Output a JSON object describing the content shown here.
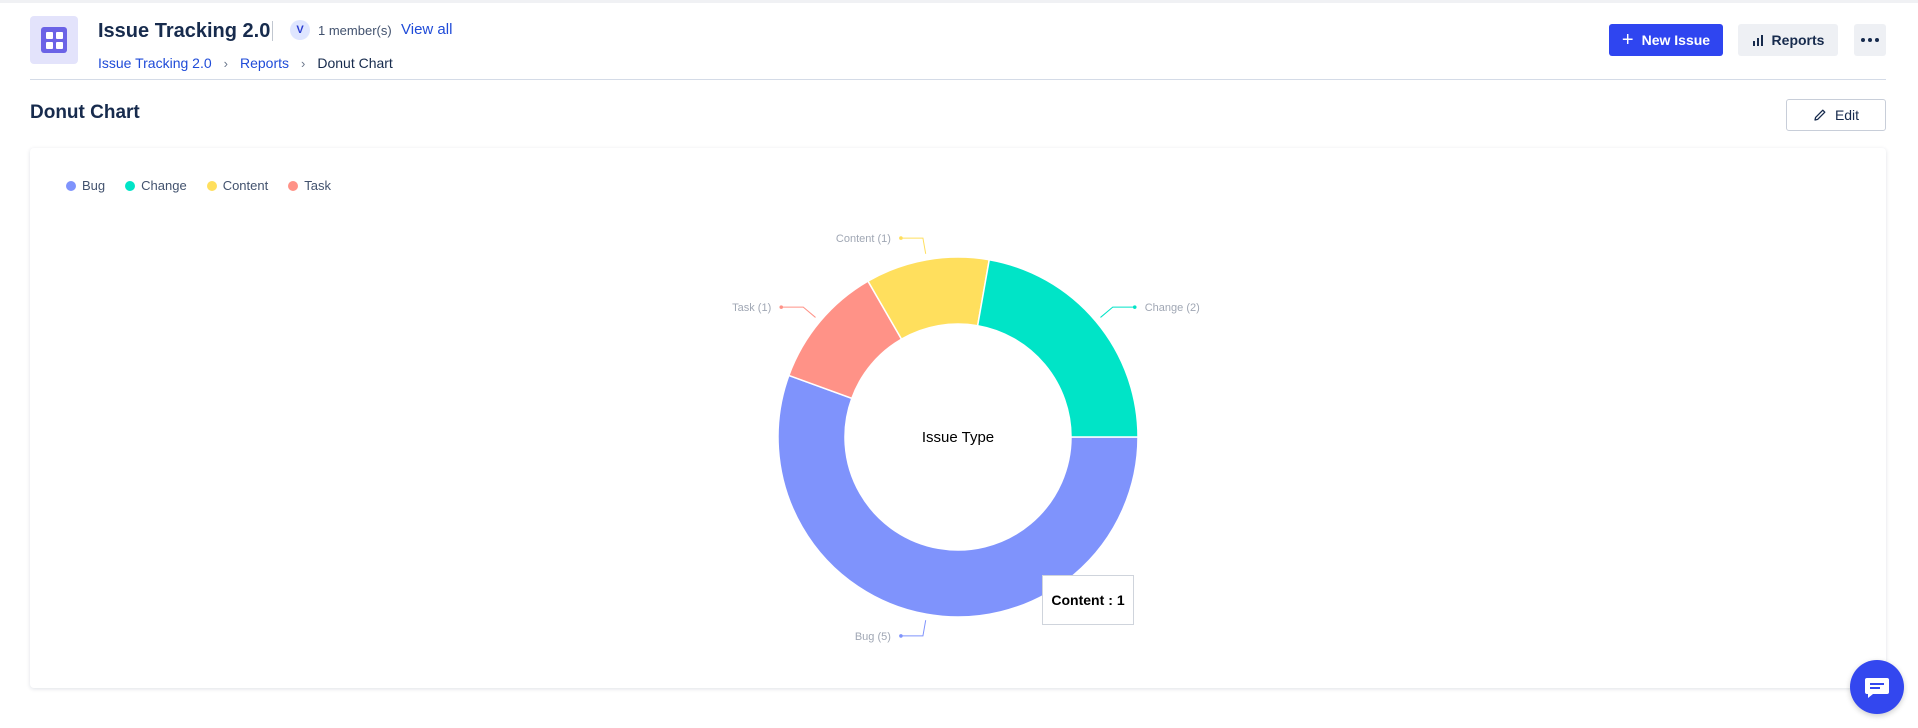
{
  "header": {
    "title": "Issue Tracking 2.0",
    "member_avatar": "V",
    "member_count": "1 member(s)",
    "view_all": "View all",
    "breadcrumb": [
      "Issue Tracking 2.0",
      "Reports",
      "Donut Chart"
    ],
    "new_issue": "New Issue",
    "reports": "Reports"
  },
  "section": {
    "title": "Donut Chart",
    "edit": "Edit"
  },
  "tooltip": {
    "label": "Content",
    "value": ": 1"
  },
  "colors": {
    "accent": "#2f45f0",
    "Bug": "#7f93fc",
    "Change": "#00e4c7",
    "Content": "#ffdf5d",
    "Task": "#ff9287"
  },
  "chart_data": {
    "type": "pie",
    "center_label": "Issue Type",
    "legend": [
      "Bug",
      "Change",
      "Content",
      "Task"
    ],
    "legend_position": "top-left",
    "slices": [
      {
        "label": "Bug",
        "value": 5,
        "data_label": "Bug (5)"
      },
      {
        "label": "Task",
        "value": 1,
        "data_label": "Task (1)"
      },
      {
        "label": "Content",
        "value": 1,
        "data_label": "Content (1)"
      },
      {
        "label": "Change",
        "value": 2,
        "data_label": "Change (2)"
      }
    ]
  }
}
